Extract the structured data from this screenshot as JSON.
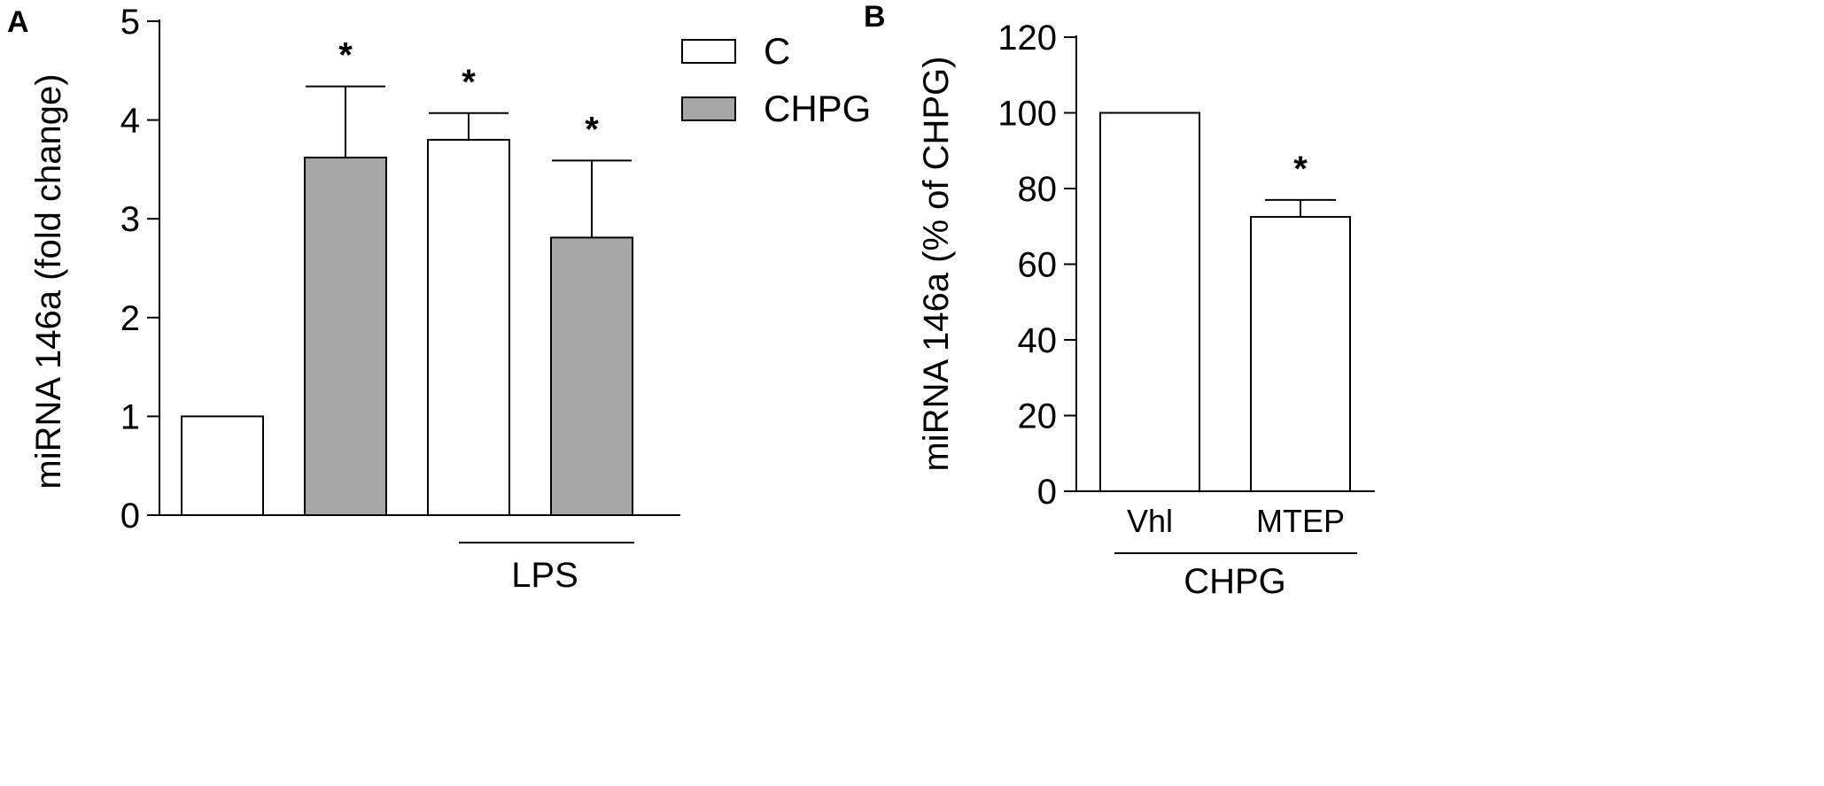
{
  "colors": {
    "white_bar": "#ffffff",
    "gray_bar": "#a6a6a6",
    "axis": "#000000"
  },
  "chart_data": [
    {
      "type": "bar",
      "panel_label": "A",
      "ylabel": "miRNA 146a (fold change)",
      "ylim": [
        0,
        5
      ],
      "yticks": [
        "0",
        "1",
        "2",
        "3",
        "4",
        "5"
      ],
      "legend": {
        "placement": "top-right",
        "entries": [
          "C",
          "CHPG"
        ]
      },
      "group_label": "LPS",
      "bars": [
        {
          "series": "C",
          "value": 1.0,
          "error": 0,
          "sig": ""
        },
        {
          "series": "CHPG",
          "value": 3.62,
          "error": 0.72,
          "sig": "*"
        },
        {
          "series": "C",
          "value": 3.8,
          "error": 0.27,
          "sig": "*"
        },
        {
          "series": "CHPG",
          "value": 2.81,
          "error": 0.78,
          "sig": "*"
        }
      ]
    },
    {
      "type": "bar",
      "panel_label": "B",
      "ylabel": "miRNA 146a (% of CHPG)",
      "ylim": [
        0,
        120
      ],
      "yticks": [
        "0",
        "20",
        "40",
        "60",
        "80",
        "100",
        "120"
      ],
      "categories": [
        "Vhl",
        "MTEP"
      ],
      "group_label": "CHPG",
      "bars": [
        {
          "series": "C",
          "value": 100,
          "error": 0,
          "sig": ""
        },
        {
          "series": "C",
          "value": 72.5,
          "error": 4.5,
          "sig": "*"
        }
      ]
    }
  ]
}
